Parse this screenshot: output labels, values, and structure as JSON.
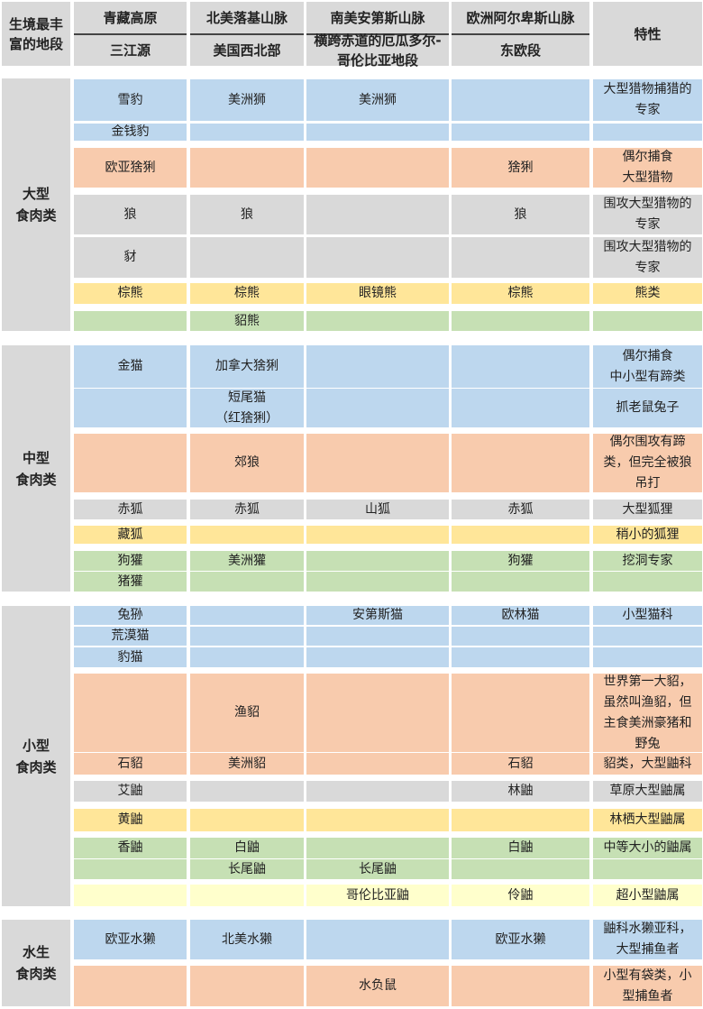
{
  "colors": {
    "blue": "#bdd7ee",
    "orange": "#f8cbad",
    "gray": "#d9d9d9",
    "yellow": "#ffe699",
    "green": "#c6e0b4",
    "lightyellow": "#ffffcc"
  },
  "header": {
    "corner": "生境最丰\n富的地段",
    "regions": [
      "青藏高原",
      "北美落基山脉",
      "南美安第斯山脉",
      "欧洲阿尔卑斯山脉"
    ],
    "subregions": [
      "三江源",
      "美国西北部",
      "横跨赤道的厄瓜多尔-\n哥伦比亚地段",
      "东欧段"
    ],
    "trait": "特性"
  },
  "sections": [
    {
      "label": "大型\n食肉类",
      "rows": [
        {
          "color": "blue",
          "cells": [
            "雪豹",
            "美洲狮",
            "美洲狮",
            "",
            "大型猎物捕猎的\n专家"
          ]
        },
        {
          "color": "blue",
          "cells": [
            "金钱豹",
            "",
            "",
            "",
            ""
          ]
        },
        {
          "color": "orange",
          "cells": [
            "欧亚猞猁",
            "",
            "",
            "猞猁",
            "偶尔捕食\n大型猎物"
          ]
        },
        {
          "color": "gray",
          "cells": [
            "狼",
            "狼",
            "",
            "狼",
            "围攻大型猎物的\n专家"
          ]
        },
        {
          "color": "gray",
          "cells": [
            "豺",
            "",
            "",
            "",
            "围攻大型猎物的\n专家"
          ]
        },
        {
          "color": "yellow",
          "cells": [
            "棕熊",
            "棕熊",
            "眼镜熊",
            "棕熊",
            "熊类"
          ]
        },
        {
          "color": "green",
          "cells": [
            "",
            "貂熊",
            "",
            "",
            ""
          ]
        }
      ]
    },
    {
      "label": "中型\n食肉类",
      "rows": [
        {
          "color": "blue",
          "cells": [
            "金猫",
            "加拿大猞猁",
            "",
            "",
            "偶尔捕食\n中小型有蹄类"
          ]
        },
        {
          "color": "blue",
          "cells": [
            "",
            "短尾猫\n（红猞猁）",
            "",
            "",
            "抓老鼠兔子"
          ]
        },
        {
          "color": "orange",
          "cells": [
            "",
            "郊狼",
            "",
            "",
            "偶尔围攻有蹄\n类，但完全被狼\n吊打"
          ]
        },
        {
          "color": "gray",
          "cells": [
            "赤狐",
            "赤狐",
            "山狐",
            "赤狐",
            "大型狐狸"
          ]
        },
        {
          "color": "yellow",
          "cells": [
            "藏狐",
            "",
            "",
            "",
            "稍小的狐狸"
          ]
        },
        {
          "color": "green",
          "cells": [
            "狗獾",
            "美洲獾",
            "",
            "狗獾",
            "挖洞专家"
          ]
        },
        {
          "color": "green",
          "cells": [
            "猪獾",
            "",
            "",
            "",
            ""
          ]
        }
      ]
    },
    {
      "label": "小型\n食肉类",
      "rows": [
        {
          "color": "blue",
          "cells": [
            "兔狲",
            "",
            "安第斯猫",
            "欧林猫",
            "小型猫科"
          ]
        },
        {
          "color": "blue",
          "cells": [
            "荒漠猫",
            "",
            "",
            "",
            ""
          ]
        },
        {
          "color": "blue",
          "cells": [
            "豹猫",
            "",
            "",
            "",
            ""
          ]
        },
        {
          "color": "orange",
          "cells": [
            "",
            "渔貂",
            "",
            "",
            "世界第一大貂，\n虽然叫渔貂，但\n主食美洲豪猪和\n野兔"
          ]
        },
        {
          "color": "orange",
          "cells": [
            "石貂",
            "美洲貂",
            "",
            "石貂",
            "貂类，大型鼬科"
          ]
        },
        {
          "color": "gray",
          "cells": [
            "艾鼬",
            "",
            "",
            "林鼬",
            "草原大型鼬属"
          ]
        },
        {
          "color": "yellow",
          "cells": [
            "黄鼬",
            "",
            "",
            "",
            "林栖大型鼬属"
          ]
        },
        {
          "color": "green",
          "cells": [
            "香鼬",
            "白鼬",
            "",
            "白鼬",
            "中等大小的鼬属"
          ]
        },
        {
          "color": "green",
          "cells": [
            "",
            "长尾鼬",
            "长尾鼬",
            "",
            ""
          ]
        },
        {
          "color": "lightyellow",
          "cells": [
            "",
            "",
            "哥伦比亚鼬",
            "伶鼬",
            "超小型鼬属"
          ]
        }
      ]
    },
    {
      "label": "水生\n食肉类",
      "rows": [
        {
          "color": "blue",
          "cells": [
            "欧亚水獭",
            "北美水獭",
            "",
            "欧亚水獭",
            "鼬科水獭亚科，\n大型捕鱼者"
          ]
        },
        {
          "color": "orange",
          "cells": [
            "",
            "",
            "水负鼠",
            "",
            "小型有袋类，小\n型捕鱼者"
          ]
        }
      ]
    }
  ]
}
